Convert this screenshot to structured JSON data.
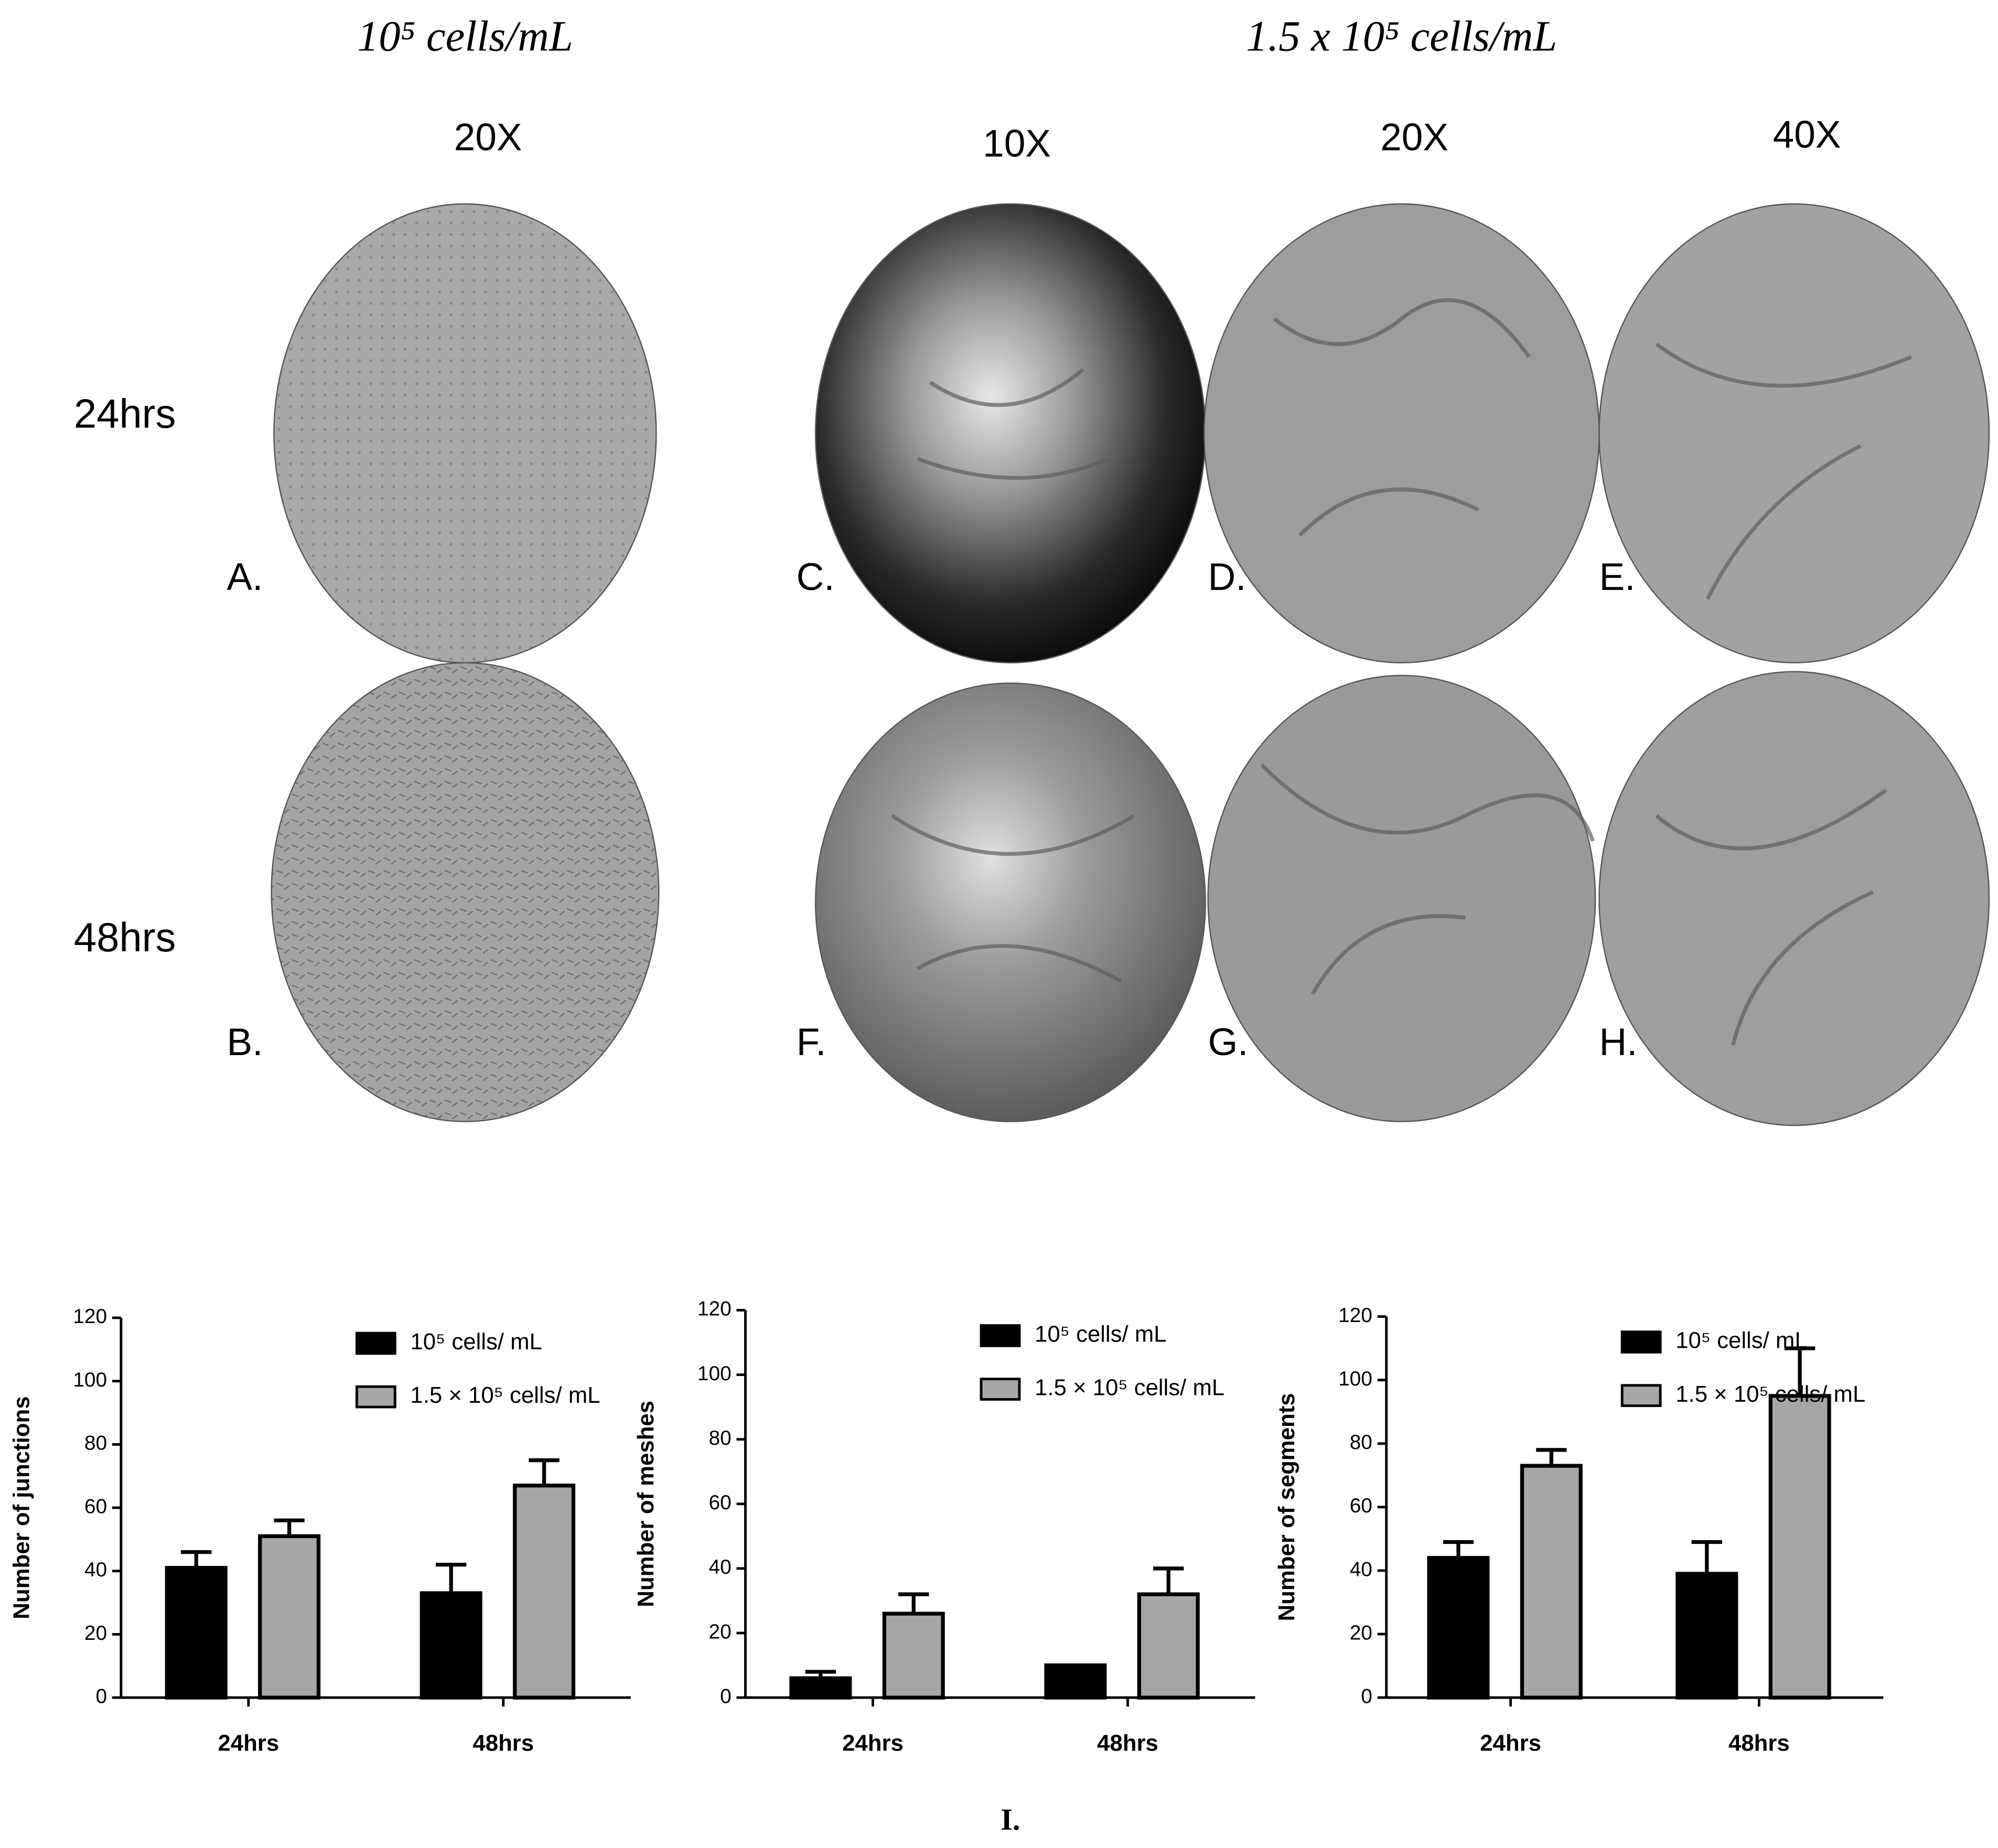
{
  "figure": {
    "column_headers": [
      "10⁵ cells/mL",
      "1.5 x 10⁵ cells/mL"
    ],
    "magnifications": [
      "20X",
      "10X",
      "20X",
      "40X"
    ],
    "rows": [
      "24hrs",
      "48hrs"
    ],
    "panels": [
      "A.",
      "B.",
      "C.",
      "D.",
      "E.",
      "F.",
      "G.",
      "H."
    ],
    "chart_panel": "I."
  },
  "chart_data": [
    {
      "type": "bar",
      "y_label": "Number of junctions",
      "categories": [
        "24hrs",
        "48hrs"
      ],
      "series": [
        {
          "name": "10⁵ cells/ mL",
          "color": "#000000",
          "values": [
            41,
            33
          ],
          "errors": [
            5,
            9
          ]
        },
        {
          "name": "1.5 × 10⁵ cells/ mL",
          "color": "#a6a6a8",
          "values": [
            51,
            67
          ],
          "errors": [
            5,
            8
          ]
        }
      ],
      "ylim": [
        0,
        120
      ],
      "yticks": [
        0,
        20,
        40,
        60,
        80,
        100,
        120
      ],
      "legend": "upper right"
    },
    {
      "type": "bar",
      "y_label": "Number of meshes",
      "categories": [
        "24hrs",
        "48hrs"
      ],
      "series": [
        {
          "name": "10⁵ cells/ mL",
          "color": "#000000",
          "values": [
            6,
            10
          ],
          "errors": [
            2,
            0
          ]
        },
        {
          "name": "1.5 × 10⁵ cells/ mL",
          "color": "#a6a6a8",
          "values": [
            26,
            32
          ],
          "errors": [
            6,
            8
          ]
        }
      ],
      "ylim": [
        0,
        120
      ],
      "yticks": [
        0,
        20,
        40,
        60,
        80,
        100,
        120
      ],
      "legend": "upper right"
    },
    {
      "type": "bar",
      "y_label": "Number of segments",
      "categories": [
        "24hrs",
        "48hrs"
      ],
      "series": [
        {
          "name": "10⁵ cells/ mL",
          "color": "#000000",
          "values": [
            44,
            39
          ],
          "errors": [
            5,
            10
          ]
        },
        {
          "name": "1.5 × 10⁵ cells/ mL",
          "color": "#a6a6a8",
          "values": [
            73,
            95
          ],
          "errors": [
            5,
            15
          ]
        }
      ],
      "ylim": [
        0,
        120
      ],
      "yticks": [
        0,
        20,
        40,
        60,
        80,
        100,
        120
      ],
      "legend": "upper right"
    }
  ]
}
